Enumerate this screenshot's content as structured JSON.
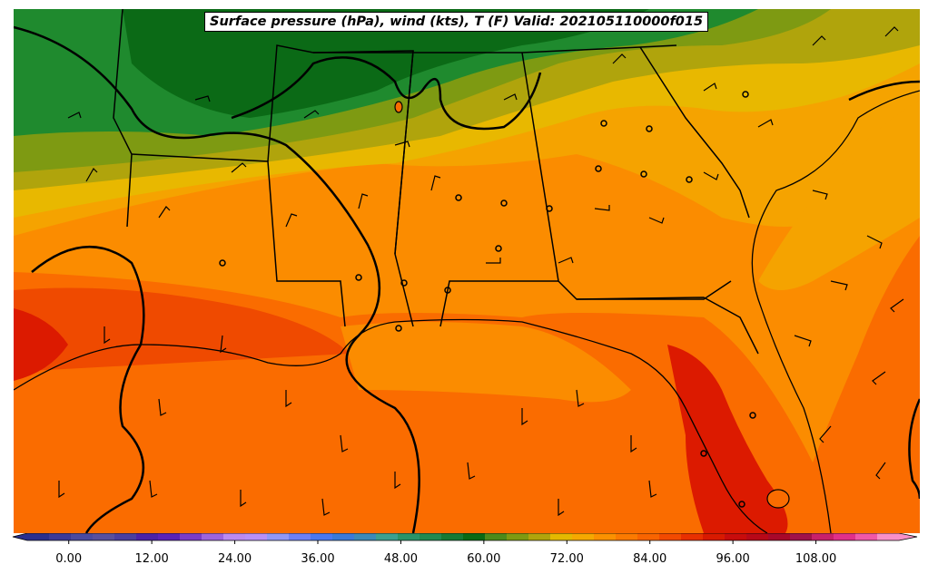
{
  "title": "Surface pressure (hPa), wind (kts), T (F) Valid: 202105110000f015",
  "colorbar": {
    "tick_labels": [
      "0.00",
      "12.00",
      "24.00",
      "36.00",
      "48.00",
      "60.00",
      "72.00",
      "84.00",
      "96.00",
      "108.00"
    ],
    "ticks": [
      0,
      12,
      24,
      36,
      48,
      60,
      72,
      84,
      96,
      108
    ],
    "min": -6,
    "max": 120,
    "colors": [
      "#2a2f8e",
      "#3a3a98",
      "#4a4aa0",
      "#58509f",
      "#4a3fa0",
      "#4b22a8",
      "#5a22b8",
      "#7a3cc8",
      "#9d64dd",
      "#bb8af0",
      "#b890f8",
      "#9098f8",
      "#6d80f5",
      "#4a78f0",
      "#3a7ad8",
      "#3a8ab8",
      "#3aa090",
      "#2a9468",
      "#1f8a50",
      "#157a34",
      "#0a6a14",
      "#4c8a1a",
      "#7e9a12",
      "#b0a40c",
      "#e4b800",
      "#f5a800",
      "#fb9100",
      "#fb7a00",
      "#f86400",
      "#f24a00",
      "#e83000",
      "#d81a00",
      "#c80c0c",
      "#b80818",
      "#a8082a",
      "#a0124a",
      "#c8206a",
      "#e0308a",
      "#f058a8",
      "#f890c8"
    ]
  },
  "temperature_levels": {
    "dark_green": "#0b6a16",
    "mid_green": "#1f8a2e",
    "olive": "#7e9a12",
    "yellow_olive": "#b0a40c",
    "yellow": "#e8b800",
    "light_orange": "#f5a300",
    "orange": "#fb8c00",
    "deep_orange": "#fa6c00",
    "red_orange": "#ef4a00",
    "red": "#dc1a00"
  }
}
